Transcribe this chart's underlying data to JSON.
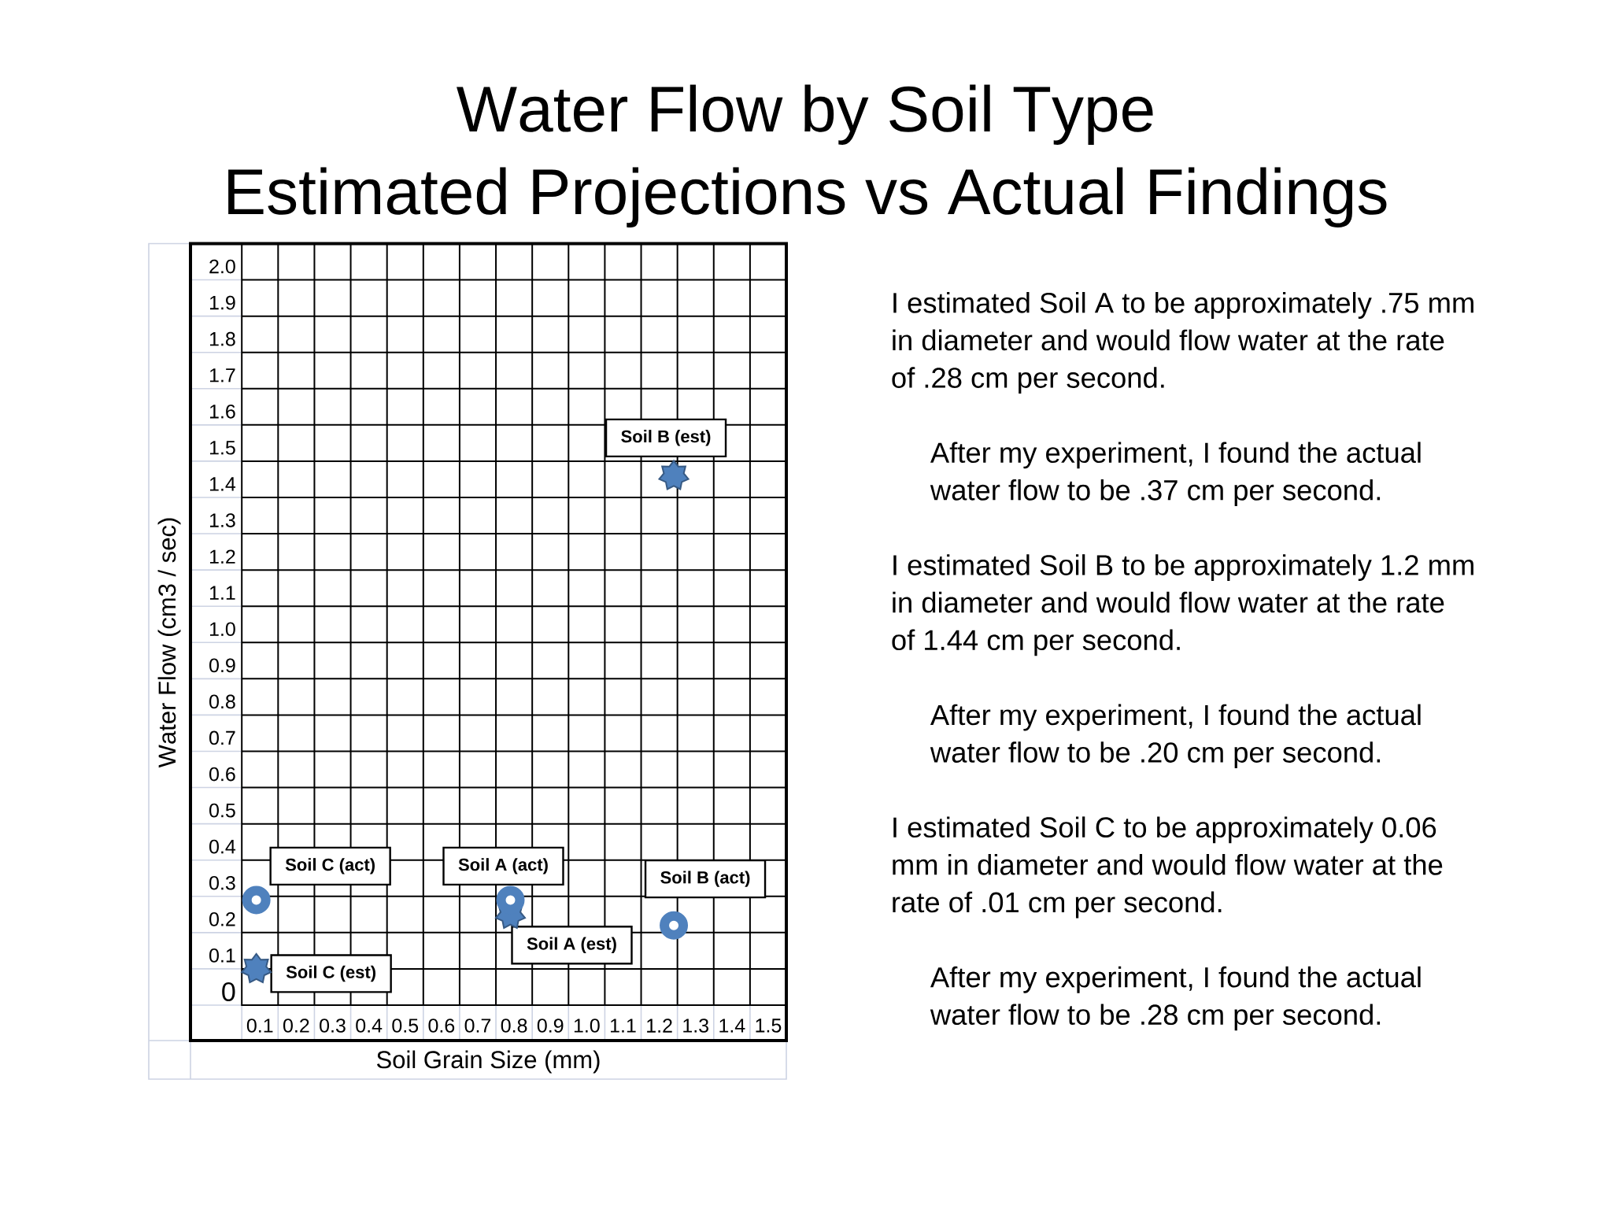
{
  "chart_data": {
    "type": "scatter",
    "title": "Water Flow by Soil Type",
    "subtitle": "Estimated Projections vs Actual Findings",
    "xlabel": "Soil Grain Size (mm)",
    "ylabel": "Water Flow (cm3 / sec)",
    "xlim": [
      0.05,
      1.55
    ],
    "xticks": [
      0.1,
      0.2,
      0.3,
      0.4,
      0.5,
      0.6,
      0.7,
      0.8,
      0.9,
      {
        "value": 1,
        "label": "1.0"
      },
      1.1,
      1.2,
      1.3,
      1.4,
      1.5
    ],
    "ylim": [
      0,
      2.1
    ],
    "yticks": [
      0,
      0.1,
      0.2,
      0.3,
      0.4,
      0.5,
      0.6,
      0.7,
      0.8,
      0.9,
      {
        "value": 1,
        "label": "1.0"
      },
      1.1,
      1.2,
      1.3,
      1.4,
      1.5,
      1.6,
      1.7,
      1.8,
      1.9,
      {
        "value": 2,
        "label": "2.0"
      }
    ],
    "grid": true,
    "series": [
      {
        "name": "Soil A (est)",
        "color": "#4f81bd",
        "marker": "star",
        "x": [
          0.79
        ],
        "values": [
          0.25
        ]
      },
      {
        "name": "Soil A (act)",
        "color": "#4f81bd",
        "marker": "circle",
        "x": [
          0.79
        ],
        "values": [
          0.29
        ]
      },
      {
        "name": "Soil B (est)",
        "color": "#4f81bd",
        "marker": "star",
        "x": [
          1.24
        ],
        "values": [
          1.46
        ]
      },
      {
        "name": "Soil B (act)",
        "color": "#4f81bd",
        "marker": "circle",
        "x": [
          1.24
        ],
        "values": [
          0.22
        ]
      },
      {
        "name": "Soil C (est)",
        "color": "#4f81bd",
        "marker": "star",
        "x": [
          0.09
        ],
        "values": [
          0.1
        ]
      },
      {
        "name": "Soil C (act)",
        "color": "#4f81bd",
        "marker": "circle",
        "x": [
          0.09
        ],
        "values": [
          0.29
        ]
      }
    ],
    "annotations": [
      "I estimated Soil A to be approximately .75 mm in diameter and would flow water at the rate of .28 cm per second.",
      "After my experiment, I found the actual water flow to be .37 cm per second.",
      "I estimated Soil B to be approximately 1.2 mm in diameter and would flow water at the rate of 1.44 cm per second.",
      "After my experiment, I found the actual water flow to be .20 cm per second.",
      "I estimated Soil C to be approximately 0.06 mm in diameter and would flow water at the rate of .01 cm per second.",
      "After my experiment, I found the actual water flow to be .28 cm per second."
    ]
  }
}
